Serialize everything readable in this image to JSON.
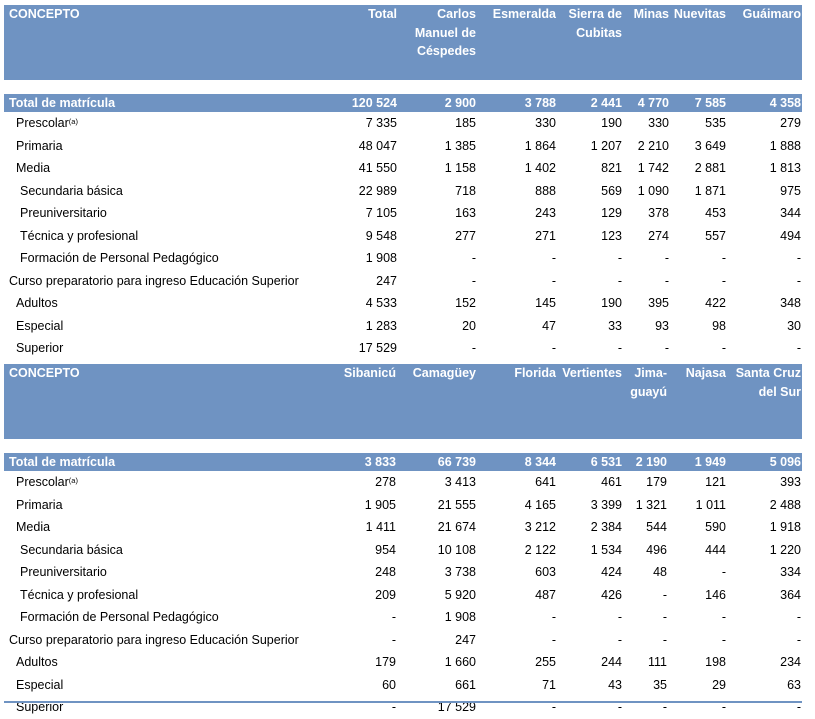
{
  "concept_header": "CONCEPTO",
  "footnote_mark": "(a)",
  "tables": [
    {
      "columns": [
        "Total",
        "Carlos\nManuel de\nCéspedes",
        "Esmeralda",
        "Sierra de\nCubitas",
        "Minas",
        "Nuevitas",
        "Guáimaro"
      ],
      "rows": [
        {
          "label": "Total de matrícula",
          "values": [
            "120 524",
            "2 900",
            "3 788",
            "2 441",
            "4 770",
            "7 585",
            "4 358"
          ]
        },
        {
          "label": "Prescolar",
          "values": [
            "7 335",
            "185",
            "330",
            "190",
            "330",
            "535",
            "279"
          ]
        },
        {
          "label": "Primaria",
          "values": [
            "48 047",
            "1 385",
            "1 864",
            "1 207",
            "2 210",
            "3 649",
            "1 888"
          ]
        },
        {
          "label": "Media",
          "values": [
            "41 550",
            "1 158",
            "1 402",
            "821",
            "1 742",
            "2 881",
            "1 813"
          ]
        },
        {
          "label": "Secundaria básica",
          "values": [
            "22 989",
            "718",
            "888",
            "569",
            "1 090",
            "1 871",
            "975"
          ]
        },
        {
          "label": "Preuniversitario",
          "values": [
            "7 105",
            "163",
            "243",
            "129",
            "378",
            "453",
            "344"
          ]
        },
        {
          "label": "Técnica y profesional",
          "values": [
            "9 548",
            "277",
            "271",
            "123",
            "274",
            "557",
            "494"
          ]
        },
        {
          "label": "Formación de Personal Pedagógico",
          "values": [
            "1 908",
            "-",
            "-",
            "-",
            "-",
            "-",
            "-"
          ]
        },
        {
          "label": "Curso preparatorio para ingreso Educación Superior",
          "values": [
            "247",
            "-",
            "-",
            "-",
            "-",
            "-",
            "-"
          ]
        },
        {
          "label": "Adultos",
          "values": [
            "4 533",
            "152",
            "145",
            "190",
            "395",
            "422",
            "348"
          ]
        },
        {
          "label": "Especial",
          "values": [
            "1 283",
            "20",
            "47",
            "33",
            "93",
            "98",
            "30"
          ]
        },
        {
          "label": "Superior",
          "values": [
            "17 529",
            "-",
            "-",
            "-",
            "-",
            "-",
            "-"
          ]
        }
      ]
    },
    {
      "columns": [
        "Sibanicú",
        "Camagüey",
        "Florida",
        "Vertientes",
        "Jima-\nguayú",
        "Najasa",
        "Santa Cruz\ndel Sur"
      ],
      "rows": [
        {
          "label": "Total de matrícula",
          "values": [
            "3 833",
            "66 739",
            "8 344",
            "6 531",
            "2 190",
            "1 949",
            "5 096"
          ]
        },
        {
          "label": "Prescolar",
          "values": [
            "278",
            "3 413",
            "641",
            "461",
            "179",
            "121",
            "393"
          ]
        },
        {
          "label": "Primaria",
          "values": [
            "1 905",
            "21 555",
            "4 165",
            "3 399",
            "1 321",
            "1 011",
            "2 488"
          ]
        },
        {
          "label": "Media",
          "values": [
            "1 411",
            "21 674",
            "3 212",
            "2 384",
            "544",
            "590",
            "1 918"
          ]
        },
        {
          "label": "Secundaria básica",
          "values": [
            "954",
            "10 108",
            "2 122",
            "1 534",
            "496",
            "444",
            "1 220"
          ]
        },
        {
          "label": "Preuniversitario",
          "values": [
            "248",
            "3 738",
            "603",
            "424",
            "48",
            "-",
            "334"
          ]
        },
        {
          "label": "Técnica y profesional",
          "values": [
            "209",
            "5 920",
            "487",
            "426",
            "-",
            "146",
            "364"
          ]
        },
        {
          "label": "Formación de Personal Pedagógico",
          "values": [
            "-",
            "1 908",
            "-",
            "-",
            "-",
            "-",
            "-"
          ]
        },
        {
          "label": "Curso preparatorio para ingreso Educación Superior",
          "values": [
            "-",
            "247",
            "-",
            "-",
            "-",
            "-",
            "-"
          ]
        },
        {
          "label": "Adultos",
          "values": [
            "179",
            "1 660",
            "255",
            "244",
            "111",
            "198",
            "234"
          ]
        },
        {
          "label": "Especial",
          "values": [
            "60",
            "661",
            "71",
            "43",
            "35",
            "29",
            "63"
          ]
        },
        {
          "label": "Superior",
          "values": [
            "-",
            "17 529",
            "-",
            "-",
            "-",
            "-",
            "-"
          ]
        }
      ]
    }
  ]
}
